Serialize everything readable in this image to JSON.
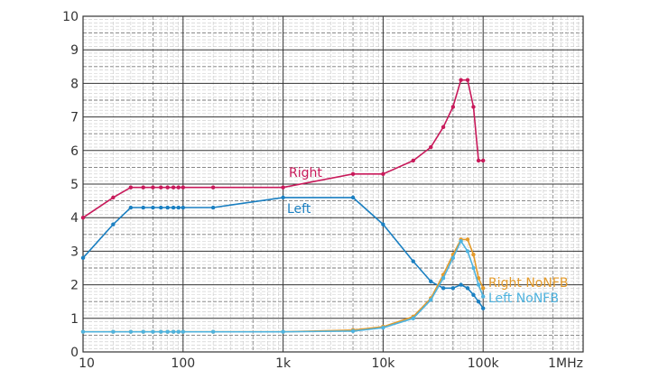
{
  "chart_data": {
    "type": "line",
    "x_scale": "log",
    "xlim": [
      10,
      1000000
    ],
    "ylim": [
      0,
      10
    ],
    "grid": true,
    "x_ticks": [
      10,
      100,
      1000,
      10000,
      100000,
      1000000
    ],
    "x_tick_labels": [
      "10",
      "100",
      "1k",
      "10k",
      "100k",
      "1MHz"
    ],
    "y_ticks": [
      0,
      1,
      2,
      3,
      4,
      5,
      6,
      7,
      8,
      9,
      10
    ],
    "y_tick_labels": [
      "0",
      "1",
      "2",
      "3",
      "4",
      "5",
      "6",
      "7",
      "8",
      "9",
      "10"
    ],
    "series": [
      {
        "name": "Right",
        "color": "#c8195a",
        "x": [
          10,
          20,
          30,
          40,
          50,
          60,
          70,
          80,
          90,
          100,
          200,
          1000,
          5000,
          10000,
          20000,
          30000,
          40000,
          50000,
          60000,
          70000,
          80000,
          90000,
          100000
        ],
        "y": [
          4.0,
          4.6,
          4.9,
          4.9,
          4.9,
          4.9,
          4.9,
          4.9,
          4.9,
          4.9,
          4.9,
          4.9,
          5.3,
          5.3,
          5.7,
          6.1,
          6.7,
          7.3,
          8.1,
          8.1,
          7.3,
          5.7,
          5.7
        ]
      },
      {
        "name": "Left",
        "color": "#1a7fc1",
        "x": [
          10,
          20,
          30,
          40,
          50,
          60,
          70,
          80,
          90,
          100,
          200,
          1000,
          5000,
          10000,
          20000,
          30000,
          40000,
          50000,
          60000,
          70000,
          80000,
          90000,
          100000
        ],
        "y": [
          2.8,
          3.8,
          4.3,
          4.3,
          4.3,
          4.3,
          4.3,
          4.3,
          4.3,
          4.3,
          4.3,
          4.6,
          4.6,
          3.8,
          2.7,
          2.1,
          1.9,
          1.9,
          2.0,
          1.9,
          1.7,
          1.5,
          1.3
        ]
      },
      {
        "name": "Right NoNFB",
        "color": "#e39a2a",
        "x": [
          10,
          20,
          30,
          40,
          50,
          60,
          70,
          80,
          90,
          100,
          200,
          1000,
          5000,
          10000,
          20000,
          30000,
          40000,
          50000,
          60000,
          70000,
          80000,
          90000,
          100000
        ],
        "y": [
          0.6,
          0.6,
          0.6,
          0.6,
          0.6,
          0.6,
          0.6,
          0.6,
          0.6,
          0.6,
          0.6,
          0.6,
          0.65,
          0.75,
          1.05,
          1.6,
          2.3,
          2.9,
          3.35,
          3.35,
          2.9,
          2.2,
          1.9
        ]
      },
      {
        "name": "Left NoNFB",
        "color": "#4fb3df",
        "x": [
          10,
          20,
          30,
          40,
          50,
          60,
          70,
          80,
          90,
          100,
          200,
          1000,
          5000,
          10000,
          20000,
          30000,
          40000,
          50000,
          60000,
          70000,
          80000,
          90000,
          100000
        ],
        "y": [
          0.6,
          0.6,
          0.6,
          0.6,
          0.6,
          0.6,
          0.6,
          0.6,
          0.6,
          0.6,
          0.6,
          0.6,
          0.62,
          0.72,
          1.0,
          1.55,
          2.2,
          2.8,
          3.3,
          3.0,
          2.5,
          2.0,
          1.65
        ]
      }
    ],
    "annotations": [
      {
        "text": "Right",
        "series": 0
      },
      {
        "text": "Left",
        "series": 1
      },
      {
        "text": "Right NoNFB",
        "series": 2
      },
      {
        "text": "Left NoNFB",
        "series": 3
      }
    ]
  }
}
